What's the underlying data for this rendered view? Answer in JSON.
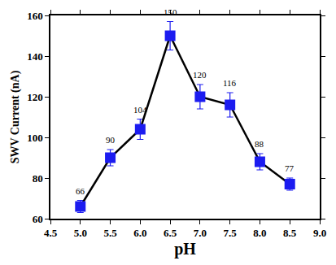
{
  "chart_data": {
    "type": "line",
    "x_label": "pH",
    "y_label": "SWV Current (nA)",
    "x": [
      5.0,
      5.5,
      6.0,
      6.5,
      7.0,
      7.5,
      8.0,
      8.5
    ],
    "values": [
      66,
      90,
      104,
      150,
      120,
      116,
      88,
      77
    ],
    "errors": [
      3,
      4,
      5,
      7,
      6,
      6,
      4,
      3
    ],
    "color": "#1c1cf0",
    "marker": "square",
    "line_style": "solid",
    "data_labels": true,
    "grid": false,
    "xlim": [
      4.5,
      9.0
    ],
    "xticks": [
      {
        "value": 4.5,
        "label": "4.5"
      },
      {
        "value": 5,
        "label": "5.0"
      },
      {
        "value": 5.5,
        "label": "5.5"
      },
      {
        "value": 6,
        "label": "6.0"
      },
      {
        "value": 6.5,
        "label": "6.5"
      },
      {
        "value": 7,
        "label": "7.0"
      },
      {
        "value": 7.5,
        "label": "7.5"
      },
      {
        "value": 8,
        "label": "8.0"
      },
      {
        "value": 8.5,
        "label": "8.5"
      },
      {
        "value": 9,
        "label": "9.0"
      }
    ],
    "ylim": [
      60,
      160
    ],
    "yticks": [
      60,
      80,
      100,
      120,
      140,
      160
    ]
  }
}
